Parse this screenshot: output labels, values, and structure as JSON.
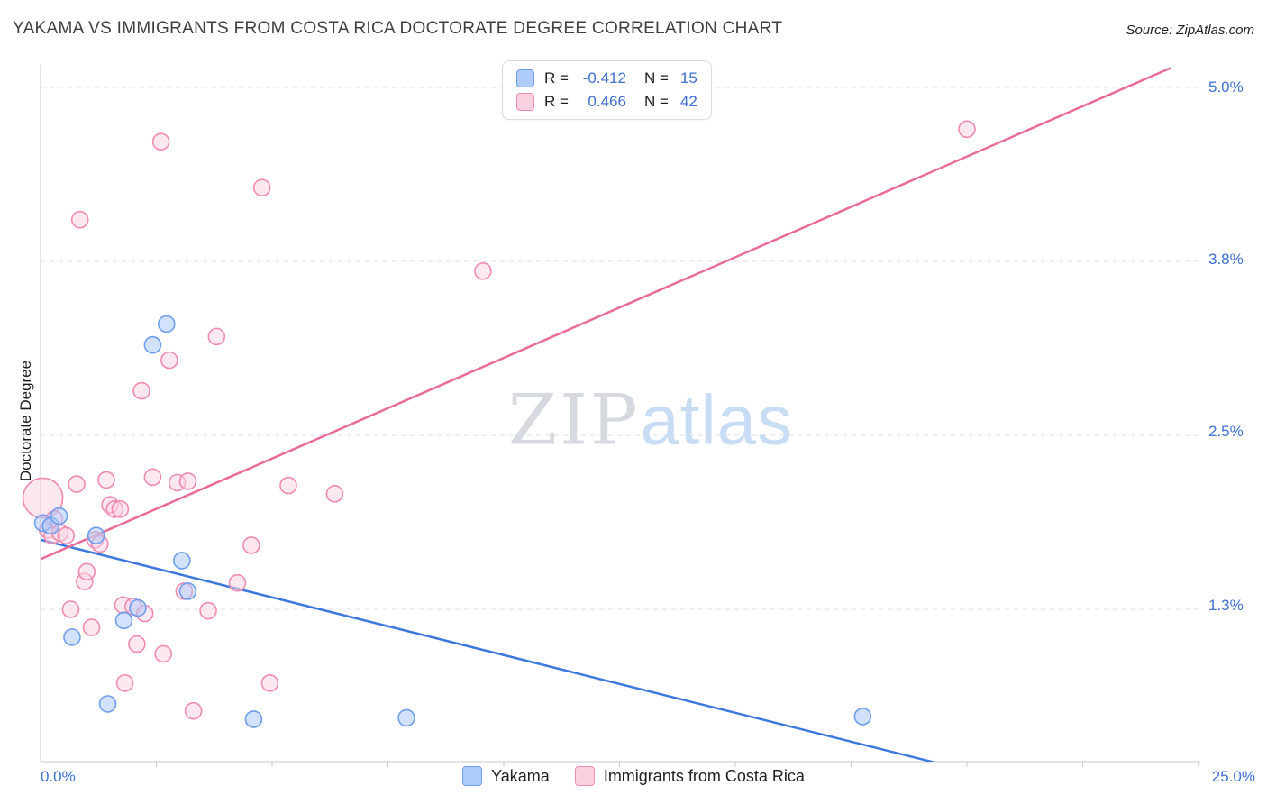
{
  "header": {
    "title": "YAKAMA VS IMMIGRANTS FROM COSTA RICA DOCTORATE DEGREE CORRELATION CHART",
    "source": "Source: ZipAtlas.com"
  },
  "watermark": {
    "zip": "ZIP",
    "atlas": "atlas"
  },
  "legend_box": {
    "rows": [
      {
        "r_label": "R =",
        "r": "-0.412",
        "n_label": "N =",
        "n": "15"
      },
      {
        "r_label": "R =",
        "r": "0.466",
        "n_label": "N =",
        "n": "42"
      }
    ]
  },
  "chart_data": {
    "type": "scatter",
    "title": "Yakama vs Immigrants from Costa Rica Doctorate Degree Correlation",
    "grid": "horizontal-dashed",
    "legend_position": "bottom-center",
    "x_axis": {
      "range": [
        0,
        25
      ],
      "tick_step": 2.5,
      "min_label": "0.0%",
      "max_label": "25.0%",
      "unit": "percent"
    },
    "y_axis": {
      "label": "Doctorate Degree",
      "range": [
        0.15,
        5.15
      ],
      "ticks": [
        {
          "value": 5.0,
          "label": "5.0%"
        },
        {
          "value": 3.75,
          "label": "3.8%"
        },
        {
          "value": 2.5,
          "label": "2.5%"
        },
        {
          "value": 1.25,
          "label": "1.3%"
        }
      ]
    },
    "series": [
      {
        "name": "Yakama",
        "r": -0.412,
        "n": 15,
        "fill": "rgba(174,203,250,0.55)",
        "stroke": "#6d9eeb",
        "points": [
          [
            0.05,
            1.87
          ],
          [
            0.22,
            1.85
          ],
          [
            0.4,
            1.92
          ],
          [
            0.68,
            1.05
          ],
          [
            1.2,
            1.78
          ],
          [
            1.45,
            0.57
          ],
          [
            1.8,
            1.17
          ],
          [
            2.1,
            1.26
          ],
          [
            2.42,
            3.15
          ],
          [
            2.72,
            3.3
          ],
          [
            3.05,
            1.6
          ],
          [
            3.18,
            1.38
          ],
          [
            4.6,
            0.46
          ],
          [
            7.9,
            0.47
          ],
          [
            17.75,
            0.48
          ]
        ]
      },
      {
        "name": "Immigrants from Costa Rica",
        "r": 0.466,
        "n": 42,
        "fill": "rgba(251,209,225,0.5)",
        "stroke": "#f08bb0",
        "points": [
          [
            0.05,
            2.05,
            22
          ],
          [
            0.15,
            1.82
          ],
          [
            0.25,
            1.78
          ],
          [
            0.3,
            1.9
          ],
          [
            0.42,
            1.8
          ],
          [
            0.55,
            1.78
          ],
          [
            0.65,
            1.25
          ],
          [
            0.78,
            2.15
          ],
          [
            0.85,
            4.05
          ],
          [
            0.95,
            1.45
          ],
          [
            1.0,
            1.52
          ],
          [
            1.1,
            1.12
          ],
          [
            1.18,
            1.75
          ],
          [
            1.28,
            1.72
          ],
          [
            1.42,
            2.18
          ],
          [
            1.5,
            2.0
          ],
          [
            1.6,
            1.97
          ],
          [
            1.72,
            1.97
          ],
          [
            1.78,
            1.28
          ],
          [
            1.82,
            0.72
          ],
          [
            2.0,
            1.27
          ],
          [
            2.08,
            1.0
          ],
          [
            2.18,
            2.82
          ],
          [
            2.25,
            1.22
          ],
          [
            2.42,
            2.2
          ],
          [
            2.6,
            4.61
          ],
          [
            2.65,
            0.93
          ],
          [
            2.78,
            3.04
          ],
          [
            2.95,
            2.16
          ],
          [
            3.1,
            1.38
          ],
          [
            3.18,
            2.17
          ],
          [
            3.3,
            0.52
          ],
          [
            3.62,
            1.24
          ],
          [
            3.8,
            3.21
          ],
          [
            4.25,
            1.44
          ],
          [
            4.55,
            1.71
          ],
          [
            4.78,
            4.28
          ],
          [
            4.95,
            0.72
          ],
          [
            5.35,
            2.14
          ],
          [
            6.35,
            2.08
          ],
          [
            9.55,
            3.68
          ],
          [
            20.0,
            4.7
          ]
        ]
      }
    ],
    "trend_lines": [
      {
        "series": "Yakama",
        "color": "#3d78dc",
        "start": [
          0,
          1.75
        ],
        "end": [
          19.3,
          0.15
        ]
      },
      {
        "series": "Immigrants from Costa Rica",
        "color": "#ea6b97",
        "start": [
          0,
          1.61
        ],
        "end": [
          24.4,
          5.14
        ]
      }
    ]
  }
}
